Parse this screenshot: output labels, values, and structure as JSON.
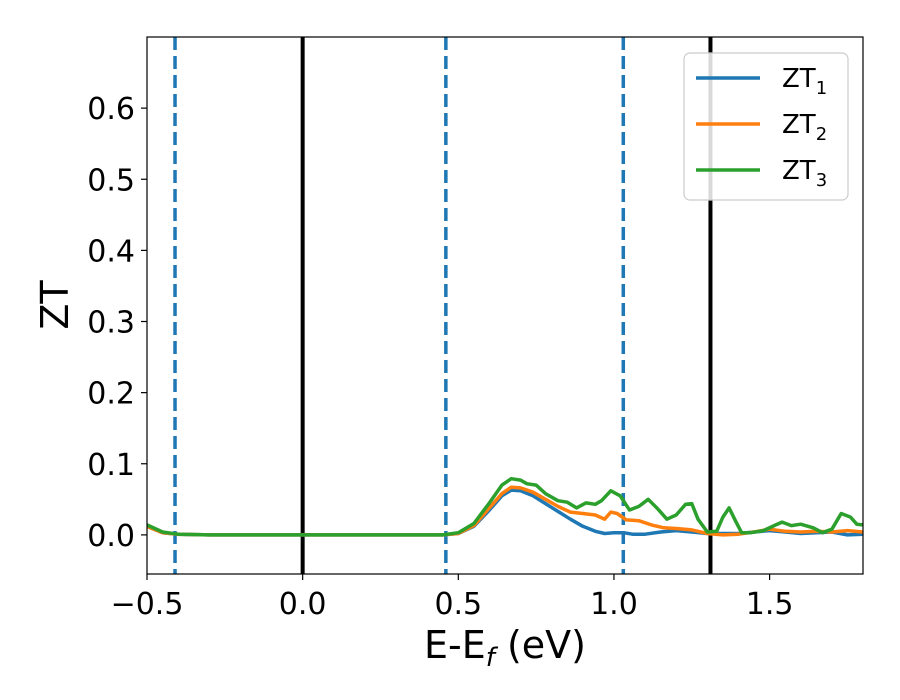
{
  "chart_data": {
    "type": "line",
    "xlabel": {
      "main": "E-E",
      "sub": "f",
      "tail": " (eV)"
    },
    "ylabel": "ZT",
    "xlim": [
      -0.5,
      1.8
    ],
    "ylim": [
      -0.055,
      0.7
    ],
    "xticks": [
      {
        "value": -0.5,
        "label": "−0.5"
      },
      {
        "value": 0.0,
        "label": "0.0"
      },
      {
        "value": 0.5,
        "label": "0.5"
      },
      {
        "value": 1.0,
        "label": "1.0"
      },
      {
        "value": 1.5,
        "label": "1.5"
      }
    ],
    "yticks": [
      {
        "value": 0.0,
        "label": "0.0"
      },
      {
        "value": 0.1,
        "label": "0.1"
      },
      {
        "value": 0.2,
        "label": "0.2"
      },
      {
        "value": 0.3,
        "label": "0.3"
      },
      {
        "value": 0.4,
        "label": "0.4"
      },
      {
        "value": 0.5,
        "label": "0.5"
      },
      {
        "value": 0.6,
        "label": "0.6"
      }
    ],
    "grid": false,
    "legend_position": "top-right",
    "vertical_lines": [
      {
        "x": -0.41,
        "style": "dashed",
        "color": "#1f77b4"
      },
      {
        "x": 0.0,
        "style": "solid",
        "color": "#000000"
      },
      {
        "x": 0.46,
        "style": "dashed",
        "color": "#1f77b4"
      },
      {
        "x": 1.03,
        "style": "dashed",
        "color": "#1f77b4"
      },
      {
        "x": 1.31,
        "style": "solid",
        "color": "#000000"
      }
    ],
    "series": [
      {
        "name": {
          "main": "ZT",
          "sub": "1"
        },
        "color": "#1f77b4",
        "points": [
          [
            -0.5,
            0.012
          ],
          [
            -0.45,
            0.003
          ],
          [
            -0.4,
            0.001
          ],
          [
            -0.3,
            0.0
          ],
          [
            0.0,
            0.0
          ],
          [
            0.3,
            0.0
          ],
          [
            0.45,
            0.0
          ],
          [
            0.5,
            0.002
          ],
          [
            0.55,
            0.012
          ],
          [
            0.6,
            0.035
          ],
          [
            0.64,
            0.055
          ],
          [
            0.67,
            0.063
          ],
          [
            0.7,
            0.062
          ],
          [
            0.74,
            0.055
          ],
          [
            0.78,
            0.044
          ],
          [
            0.82,
            0.033
          ],
          [
            0.86,
            0.022
          ],
          [
            0.9,
            0.012
          ],
          [
            0.94,
            0.005
          ],
          [
            0.97,
            0.002
          ],
          [
            1.0,
            0.003
          ],
          [
            1.03,
            0.003
          ],
          [
            1.06,
            0.001
          ],
          [
            1.1,
            0.001
          ],
          [
            1.15,
            0.004
          ],
          [
            1.2,
            0.006
          ],
          [
            1.25,
            0.004
          ],
          [
            1.3,
            0.002
          ],
          [
            1.35,
            0.002
          ],
          [
            1.4,
            0.002
          ],
          [
            1.45,
            0.004
          ],
          [
            1.5,
            0.006
          ],
          [
            1.55,
            0.004
          ],
          [
            1.6,
            0.002
          ],
          [
            1.65,
            0.003
          ],
          [
            1.7,
            0.004
          ],
          [
            1.75,
            0.0
          ],
          [
            1.8,
            0.001
          ]
        ]
      },
      {
        "name": {
          "main": "ZT",
          "sub": "2"
        },
        "color": "#ff7f0e",
        "points": [
          [
            -0.5,
            0.012
          ],
          [
            -0.45,
            0.003
          ],
          [
            -0.4,
            0.001
          ],
          [
            -0.3,
            0.0
          ],
          [
            0.0,
            0.0
          ],
          [
            0.3,
            0.0
          ],
          [
            0.45,
            0.0
          ],
          [
            0.5,
            0.002
          ],
          [
            0.55,
            0.013
          ],
          [
            0.6,
            0.038
          ],
          [
            0.64,
            0.058
          ],
          [
            0.67,
            0.067
          ],
          [
            0.7,
            0.066
          ],
          [
            0.74,
            0.06
          ],
          [
            0.78,
            0.05
          ],
          [
            0.82,
            0.04
          ],
          [
            0.86,
            0.032
          ],
          [
            0.9,
            0.03
          ],
          [
            0.94,
            0.028
          ],
          [
            0.97,
            0.022
          ],
          [
            0.99,
            0.032
          ],
          [
            1.01,
            0.03
          ],
          [
            1.04,
            0.021
          ],
          [
            1.08,
            0.02
          ],
          [
            1.12,
            0.014
          ],
          [
            1.16,
            0.01
          ],
          [
            1.2,
            0.009
          ],
          [
            1.25,
            0.007
          ],
          [
            1.3,
            0.002
          ],
          [
            1.35,
            0.0
          ],
          [
            1.4,
            0.001
          ],
          [
            1.45,
            0.004
          ],
          [
            1.5,
            0.008
          ],
          [
            1.55,
            0.005
          ],
          [
            1.6,
            0.004
          ],
          [
            1.65,
            0.005
          ],
          [
            1.7,
            0.004
          ],
          [
            1.75,
            0.006
          ],
          [
            1.8,
            0.004
          ]
        ]
      },
      {
        "name": {
          "main": "ZT",
          "sub": "3"
        },
        "color": "#2ca02c",
        "points": [
          [
            -0.5,
            0.014
          ],
          [
            -0.45,
            0.004
          ],
          [
            -0.4,
            0.001
          ],
          [
            -0.3,
            0.0
          ],
          [
            0.0,
            0.0
          ],
          [
            0.3,
            0.0
          ],
          [
            0.45,
            0.0
          ],
          [
            0.5,
            0.003
          ],
          [
            0.55,
            0.016
          ],
          [
            0.6,
            0.045
          ],
          [
            0.64,
            0.07
          ],
          [
            0.67,
            0.079
          ],
          [
            0.7,
            0.077
          ],
          [
            0.72,
            0.072
          ],
          [
            0.75,
            0.07
          ],
          [
            0.78,
            0.058
          ],
          [
            0.82,
            0.048
          ],
          [
            0.85,
            0.046
          ],
          [
            0.88,
            0.038
          ],
          [
            0.91,
            0.045
          ],
          [
            0.94,
            0.043
          ],
          [
            0.96,
            0.048
          ],
          [
            0.99,
            0.062
          ],
          [
            1.02,
            0.055
          ],
          [
            1.05,
            0.035
          ],
          [
            1.08,
            0.04
          ],
          [
            1.11,
            0.05
          ],
          [
            1.14,
            0.037
          ],
          [
            1.17,
            0.022
          ],
          [
            1.2,
            0.028
          ],
          [
            1.23,
            0.043
          ],
          [
            1.25,
            0.044
          ],
          [
            1.27,
            0.022
          ],
          [
            1.3,
            0.004
          ],
          [
            1.33,
            0.005
          ],
          [
            1.35,
            0.025
          ],
          [
            1.37,
            0.038
          ],
          [
            1.39,
            0.02
          ],
          [
            1.41,
            0.003
          ],
          [
            1.44,
            0.003
          ],
          [
            1.48,
            0.006
          ],
          [
            1.52,
            0.014
          ],
          [
            1.54,
            0.018
          ],
          [
            1.57,
            0.013
          ],
          [
            1.6,
            0.015
          ],
          [
            1.64,
            0.01
          ],
          [
            1.67,
            0.003
          ],
          [
            1.7,
            0.008
          ],
          [
            1.73,
            0.03
          ],
          [
            1.76,
            0.025
          ],
          [
            1.78,
            0.015
          ],
          [
            1.8,
            0.014
          ]
        ]
      }
    ]
  }
}
